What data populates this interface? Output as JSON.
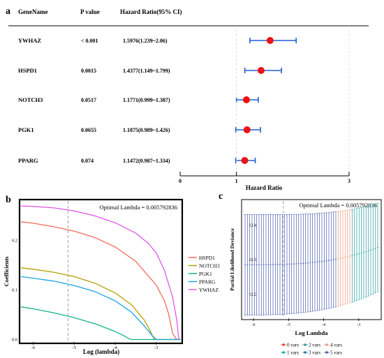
{
  "chart_data": [
    {
      "panel": "a",
      "type": "forest",
      "columns": [
        "GeneName",
        "P value",
        "Hazard Ratio(95% CI)"
      ],
      "rows": [
        {
          "gene": "YWHAZ",
          "p": "< 0.001",
          "ci_text": "1.5976(1.239~2.06)",
          "hr": 1.5976,
          "lo": 1.239,
          "hi": 2.06
        },
        {
          "gene": "HSPD1",
          "p": "0.0015",
          "ci_text": "1.4377(1.149~1.799)",
          "hr": 1.4377,
          "lo": 1.149,
          "hi": 1.799
        },
        {
          "gene": "NOTCH3",
          "p": "0.0517",
          "ci_text": "1.1771(0.999~1.387)",
          "hr": 1.1771,
          "lo": 0.999,
          "hi": 1.387
        },
        {
          "gene": "PGK1",
          "p": "0.0655",
          "ci_text": "1.1875(0.989~1.426)",
          "hr": 1.1875,
          "lo": 0.989,
          "hi": 1.426
        },
        {
          "gene": "PPARG",
          "p": "0.074",
          "ci_text": "1.1472(0.987~1.334)",
          "hr": 1.1472,
          "lo": 0.987,
          "hi": 1.334
        }
      ],
      "xlabel": "Hazard Ratio",
      "xlim": [
        0,
        3
      ],
      "xticks": [
        "0",
        "1",
        "3"
      ],
      "ref_line": 1,
      "colors": {
        "ci": "#1f5fd6",
        "point": "#ee1111"
      }
    },
    {
      "panel": "b",
      "type": "line",
      "xlabel": "Log (lambda)",
      "ylabel": "Coefficients",
      "annotation": "Optimal Lambda = 0.005792836",
      "xlim": [
        -6.3,
        -2.4
      ],
      "ylim": [
        -0.005,
        0.28
      ],
      "xticks": [
        "-6",
        "-5",
        "-4",
        "-3"
      ],
      "yticks": [
        "0.0",
        "0.1",
        "0.2"
      ],
      "vline": -5.15,
      "series": [
        {
          "name": "HSPD1",
          "color": "#f26b5b",
          "x": [
            -6.3,
            -6.0,
            -5.5,
            -5.0,
            -4.5,
            -4.0,
            -3.5,
            -3.0,
            -2.8,
            -2.7,
            -2.6,
            -2.5,
            -2.4
          ],
          "y": [
            0.238,
            0.235,
            0.228,
            0.219,
            0.206,
            0.187,
            0.158,
            0.11,
            0.078,
            0.052,
            0.012,
            0.0,
            0.0
          ]
        },
        {
          "name": "NOTCH3",
          "color": "#b5a000",
          "x": [
            -6.3,
            -6.0,
            -5.5,
            -5.0,
            -4.5,
            -4.0,
            -3.6,
            -3.3,
            -3.15,
            -3.05,
            -2.4
          ],
          "y": [
            0.145,
            0.142,
            0.136,
            0.127,
            0.114,
            0.094,
            0.07,
            0.04,
            0.018,
            0.0,
            0.0
          ]
        },
        {
          "name": "PGK1",
          "color": "#12b48a",
          "x": [
            -6.3,
            -6.0,
            -5.5,
            -5.0,
            -4.5,
            -4.0,
            -3.8,
            -3.65,
            -3.6,
            -2.4
          ],
          "y": [
            0.066,
            0.062,
            0.054,
            0.044,
            0.032,
            0.016,
            0.008,
            0.001,
            0.0,
            0.0
          ]
        },
        {
          "name": "PPARG",
          "color": "#1aa5e0",
          "x": [
            -6.3,
            -6.0,
            -5.5,
            -5.0,
            -4.5,
            -4.0,
            -3.6,
            -3.3,
            -3.1,
            -3.0,
            -2.4
          ],
          "y": [
            0.127,
            0.124,
            0.118,
            0.109,
            0.097,
            0.078,
            0.055,
            0.028,
            0.008,
            0.0,
            0.0
          ]
        },
        {
          "name": "YWHAZ",
          "color": "#e05ae6",
          "x": [
            -6.3,
            -6.0,
            -5.5,
            -5.0,
            -4.5,
            -4.0,
            -3.5,
            -3.2,
            -3.0,
            -2.8,
            -2.6,
            -2.5,
            -2.45
          ],
          "y": [
            0.27,
            0.269,
            0.266,
            0.26,
            0.25,
            0.236,
            0.215,
            0.195,
            0.175,
            0.14,
            0.085,
            0.04,
            0.0
          ]
        }
      ]
    },
    {
      "panel": "c",
      "type": "errorbar",
      "xlabel": "Log Lambda",
      "ylabel": "Partial Likelihood Deviance",
      "annotation": "Optimal Lambda = 0.005792836",
      "xlim": [
        -6.3,
        -2.4
      ],
      "ylim": [
        12.13,
        12.47
      ],
      "xticks": [
        "-6",
        "-5",
        "-4",
        "-3"
      ],
      "yticks": [
        "12.2",
        "12.3",
        "12.4"
      ],
      "vline": -5.15,
      "center_start": 12.285,
      "center_end": 12.335,
      "half_width": 0.146,
      "legend": [
        {
          "label": "0 vars",
          "color": "#e2492b"
        },
        {
          "label": "2 vars",
          "color": "#2a9ba0"
        },
        {
          "label": "4 vars",
          "color": "#f09a7a"
        },
        {
          "label": "1 vars",
          "color": "#1fa5a5"
        },
        {
          "label": "3 vars",
          "color": "#1f7f9a"
        },
        {
          "label": "5 vars",
          "color": "#4b5fb0"
        }
      ]
    }
  ],
  "labels": {
    "a": "a",
    "b": "b",
    "c": "c"
  }
}
